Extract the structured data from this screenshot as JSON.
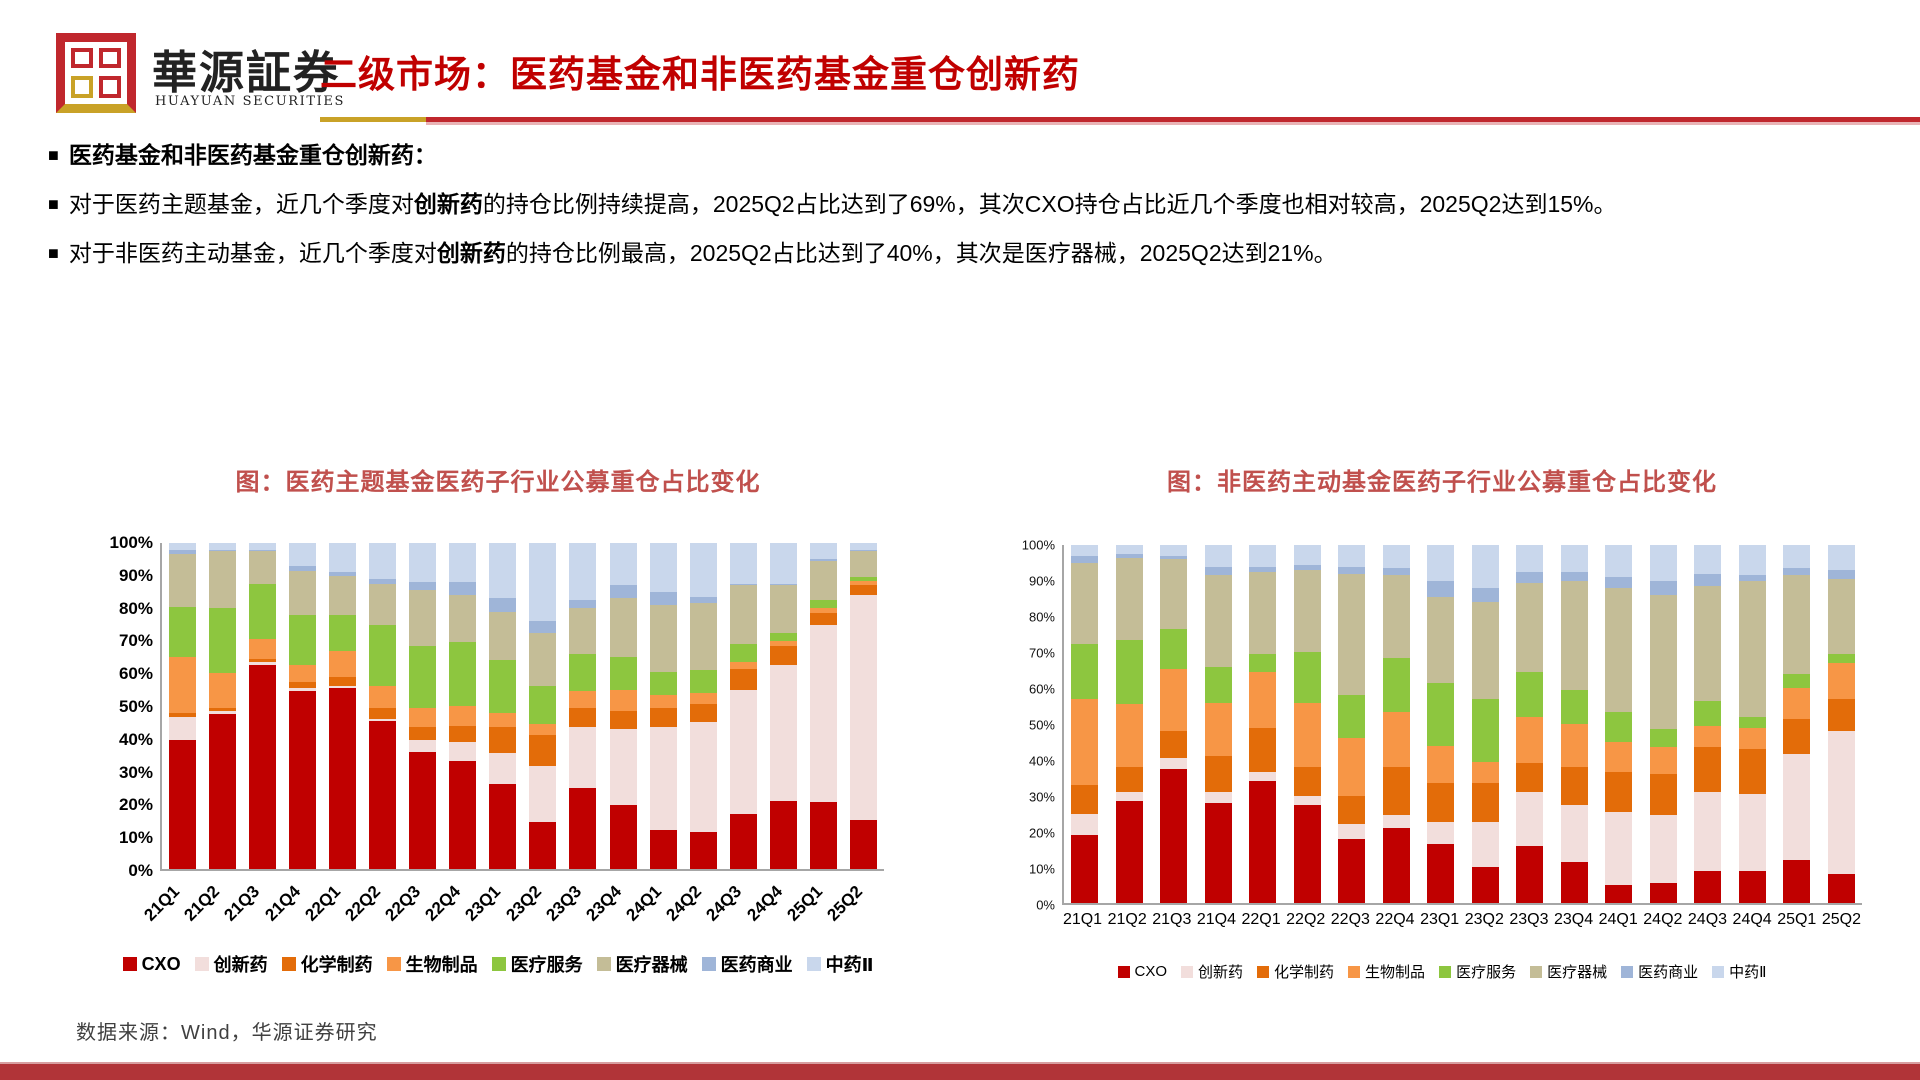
{
  "header": {
    "brand_cn": "華源証券",
    "brand_en": "HUAYUAN SECURITIES",
    "title": "二级市场：医药基金和非医药基金重仓创新药"
  },
  "bullets": [
    {
      "parts": [
        {
          "text": "医药基金和非医药基金重仓创新药：",
          "bold": true
        }
      ]
    },
    {
      "parts": [
        {
          "text": "对于医药主题基金，近几个季度对",
          "bold": false
        },
        {
          "text": "创新药",
          "bold": true
        },
        {
          "text": "的持仓比例持续提高，2025Q2占比达到了69%，其次CXO持仓占比近几个季度也相对较高，2025Q2达到15%。",
          "bold": false
        }
      ]
    },
    {
      "parts": [
        {
          "text": "对于非医药主动基金，近几个季度对",
          "bold": false
        },
        {
          "text": "创新药",
          "bold": true
        },
        {
          "text": "的持仓比例最高，2025Q2占比达到了40%，其次是医疗器械，2025Q2达到21%。",
          "bold": false
        }
      ]
    }
  ],
  "footer": {
    "source": "数据来源：Wind，华源证券研究"
  },
  "colors": {
    "title_red": "#C00000",
    "chart_title_red": "#C0504D",
    "rule_gold": "#C9A227",
    "rule_red": "#C0272D",
    "bottom_bar_red": "#B13438",
    "axis_gray": "#A6A6A6"
  },
  "chart_data": [
    {
      "type": "bar",
      "stacked": true,
      "units": "percent",
      "title": "图：医药主题基金医药子行业公募重仓占比变化",
      "ylim": [
        0,
        100
      ],
      "y_ticks": [
        "0%",
        "10%",
        "20%",
        "30%",
        "40%",
        "50%",
        "60%",
        "70%",
        "80%",
        "90%",
        "100%"
      ],
      "grid": false,
      "legend_position": "bottom",
      "x_label_rotation": -45,
      "categories": [
        "21Q1",
        "21Q2",
        "21Q3",
        "21Q4",
        "22Q1",
        "22Q2",
        "22Q3",
        "22Q4",
        "23Q1",
        "23Q2",
        "23Q3",
        "23Q4",
        "24Q1",
        "24Q2",
        "24Q3",
        "24Q4",
        "25Q1",
        "25Q2"
      ],
      "series": [
        {
          "name": "CXO",
          "color": "#C00000",
          "values": [
            39.5,
            47.5,
            62.5,
            54.5,
            55.5,
            45.5,
            36,
            33,
            26,
            14.5,
            25,
            19.5,
            12,
            11.5,
            17,
            21,
            20.5,
            15
          ]
        },
        {
          "name": "创新药",
          "color": "#F2DEDC",
          "values": [
            7,
            1,
            1,
            1,
            0.5,
            0.5,
            3.5,
            6,
            9.5,
            17,
            18.5,
            23.5,
            31.5,
            33.5,
            38,
            41.5,
            54.5,
            69
          ]
        },
        {
          "name": "化学制药",
          "color": "#E36C09",
          "values": [
            1.5,
            1,
            1,
            2,
            3,
            3.5,
            4,
            5,
            8,
            9.5,
            6,
            5.5,
            6,
            5.5,
            6.5,
            6,
            3.5,
            3
          ]
        },
        {
          "name": "生物制品",
          "color": "#F79646",
          "values": [
            17,
            10.5,
            6,
            5,
            8,
            6.5,
            6,
            6,
            4.5,
            3.5,
            5,
            6.5,
            4,
            3.5,
            2,
            1.5,
            1.5,
            1.5
          ]
        },
        {
          "name": "医疗服务",
          "color": "#8DC63F",
          "values": [
            15.5,
            20,
            17,
            15.5,
            11,
            19,
            19,
            19.5,
            16,
            11.5,
            11.5,
            10,
            7,
            7,
            5.5,
            2.5,
            2.5,
            1
          ]
        },
        {
          "name": "医疗器械",
          "color": "#C4BD97",
          "values": [
            16,
            17.5,
            10,
            13.5,
            12,
            12.5,
            17,
            14.5,
            15,
            16.5,
            14,
            18,
            20.5,
            20.5,
            18,
            14.5,
            12,
            8
          ]
        },
        {
          "name": "医药商业",
          "color": "#9FB5D8",
          "values": [
            1.5,
            0.5,
            0.5,
            1.5,
            1,
            1.5,
            2.5,
            4,
            4,
            3.5,
            2.5,
            4,
            4,
            2,
            0.5,
            0.5,
            0.5,
            0.5
          ]
        },
        {
          "name": "中药Ⅱ",
          "color": "#C9D7EC",
          "values": [
            2,
            2,
            2,
            7,
            9,
            11,
            12,
            12,
            17,
            24,
            17.5,
            13,
            15,
            16.5,
            12.5,
            12.5,
            5,
            2
          ]
        }
      ]
    },
    {
      "type": "bar",
      "stacked": true,
      "units": "percent",
      "title": "图：非医药主动基金医药子行业公募重仓占比变化",
      "ylim": [
        0,
        100
      ],
      "y_ticks": [
        "0%",
        "10%",
        "20%",
        "30%",
        "40%",
        "50%",
        "60%",
        "70%",
        "80%",
        "90%",
        "100%"
      ],
      "grid": false,
      "legend_position": "bottom",
      "x_label_rotation": 0,
      "categories": [
        "21Q1",
        "21Q2",
        "21Q3",
        "21Q4",
        "22Q1",
        "22Q2",
        "22Q3",
        "22Q4",
        "23Q1",
        "23Q2",
        "23Q3",
        "23Q4",
        "24Q1",
        "24Q2",
        "24Q3",
        "24Q4",
        "25Q1",
        "25Q2"
      ],
      "series": [
        {
          "name": "CXO",
          "color": "#C00000",
          "values": [
            19,
            28.5,
            37.5,
            28,
            34,
            27.5,
            18,
            21,
            16.5,
            10,
            16,
            11.5,
            5,
            5.5,
            9,
            9,
            12,
            8
          ]
        },
        {
          "name": "创新药",
          "color": "#F2DEDC",
          "values": [
            6,
            2.5,
            3,
            3,
            2.5,
            2.5,
            4,
            3.5,
            6,
            12.5,
            15,
            16,
            20.5,
            19,
            22,
            21.5,
            29.5,
            40
          ]
        },
        {
          "name": "化学制药",
          "color": "#E36C09",
          "values": [
            8,
            7,
            7.5,
            10,
            12.5,
            8,
            8,
            13.5,
            11,
            11,
            8,
            10.5,
            11,
            11.5,
            12.5,
            12.5,
            10,
            9
          ]
        },
        {
          "name": "生物制品",
          "color": "#F79646",
          "values": [
            24,
            17.5,
            17.5,
            15,
            15.5,
            18,
            16,
            15.5,
            10.5,
            6,
            13,
            12,
            8.5,
            7.5,
            6,
            6,
            8.5,
            10
          ]
        },
        {
          "name": "医疗服务",
          "color": "#8DC63F",
          "values": [
            15.5,
            18,
            11,
            10,
            5,
            14,
            12,
            15,
            17.5,
            17.5,
            12.5,
            9.5,
            8.5,
            5,
            7,
            3,
            4,
            2.5
          ]
        },
        {
          "name": "医疗器械",
          "color": "#C4BD97",
          "values": [
            22.5,
            23,
            19.5,
            25.5,
            23,
            23,
            34,
            23,
            24,
            27,
            25,
            30.5,
            34.5,
            37.5,
            32,
            38,
            27.5,
            21
          ]
        },
        {
          "name": "医药商业",
          "color": "#9FB5D8",
          "values": [
            2,
            1,
            1,
            2.5,
            1.5,
            1.5,
            2,
            2,
            4.5,
            4,
            3,
            2.5,
            3,
            4,
            3.5,
            1.5,
            2,
            2.5
          ]
        },
        {
          "name": "中药Ⅱ",
          "color": "#C9D7EC",
          "values": [
            3,
            2.5,
            3,
            6,
            6,
            5.5,
            6,
            6.5,
            10,
            12,
            7.5,
            7.5,
            9,
            10,
            8,
            8.5,
            6.5,
            7
          ]
        }
      ]
    }
  ]
}
